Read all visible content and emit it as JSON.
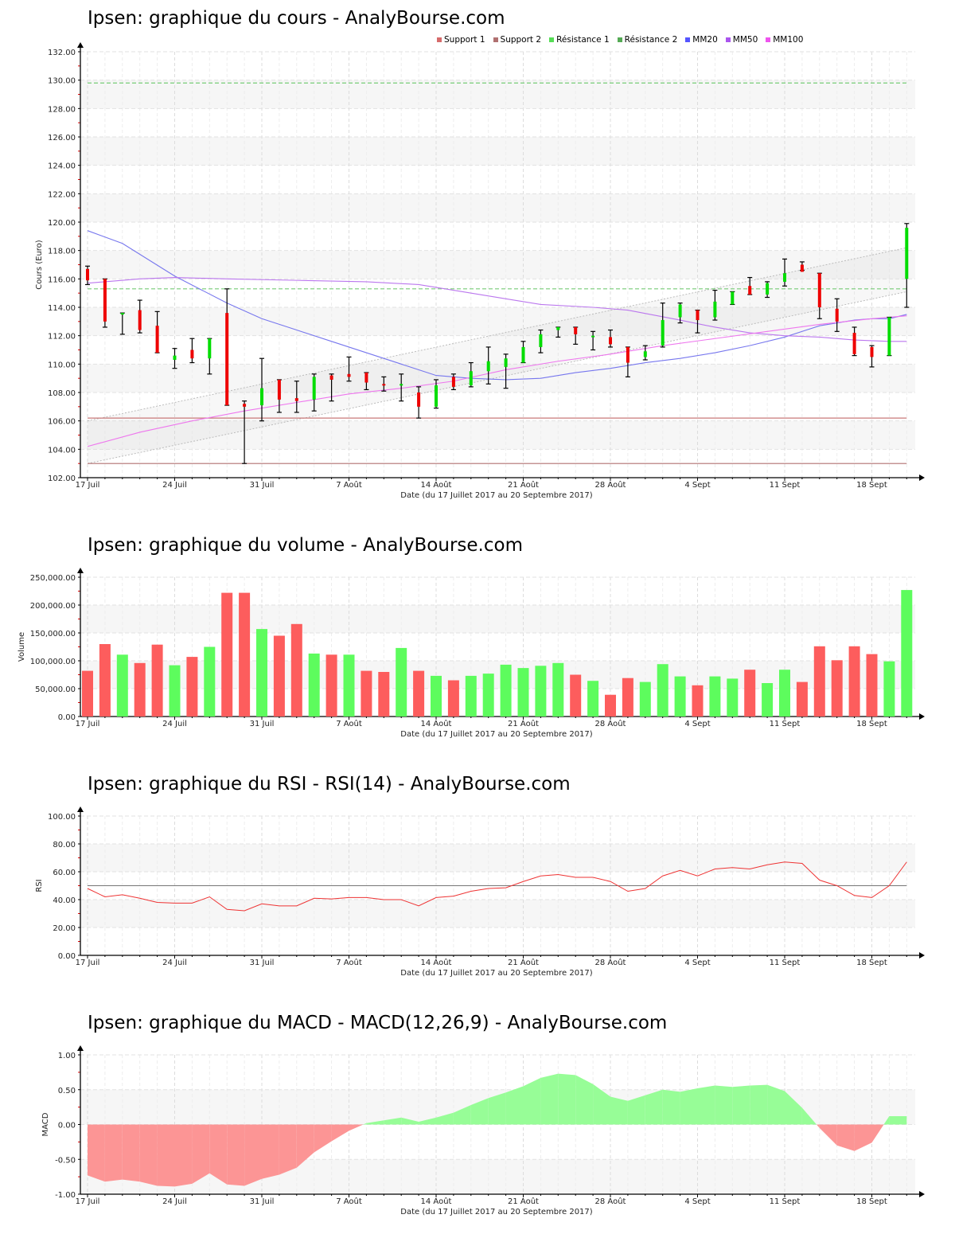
{
  "charts": {
    "price": {
      "title": "Ipsen: graphique du cours - AnalyBourse.com"
    },
    "volume": {
      "title": "Ipsen: graphique du volume - AnalyBourse.com"
    },
    "rsi": {
      "title": "Ipsen: graphique du RSI - RSI(14) - AnalyBourse.com"
    },
    "macd": {
      "title": "Ipsen: graphique du MACD - MACD(12,26,9) - AnalyBourse.com"
    }
  },
  "legend": [
    {
      "label": "Support 1",
      "color": "#d66b6b"
    },
    {
      "label": "Support 2",
      "color": "#b07070"
    },
    {
      "label": "Résistance 1",
      "color": "#55dd55"
    },
    {
      "label": "Résistance 2",
      "color": "#55aa55"
    },
    {
      "label": "MM20",
      "color": "#5555ff"
    },
    {
      "label": "MM50",
      "color": "#aa55ee"
    },
    {
      "label": "MM100",
      "color": "#ee55ee"
    }
  ],
  "chart_data": [
    {
      "type": "candlestick",
      "title": "Ipsen: graphique du cours - AnalyBourse.com",
      "xlabel": "Date (du 17 Juillet 2017 au 20 Septembre 2017)",
      "ylabel": "Cours (Euro)",
      "ylim": [
        102,
        132
      ],
      "yticks": [
        "102.00",
        "104.00",
        "106.00",
        "108.00",
        "110.00",
        "112.00",
        "114.00",
        "116.00",
        "118.00",
        "120.00",
        "122.00",
        "124.00",
        "126.00",
        "128.00",
        "130.00",
        "132.00"
      ],
      "xticks": [
        {
          "i": 0,
          "label": "17 Juil"
        },
        {
          "i": 5,
          "label": "24 Juil"
        },
        {
          "i": 10,
          "label": "31 Juil"
        },
        {
          "i": 15,
          "label": "7 Août"
        },
        {
          "i": 20,
          "label": "14 Août"
        },
        {
          "i": 25,
          "label": "21 Août"
        },
        {
          "i": 30,
          "label": "28 Août"
        },
        {
          "i": 35,
          "label": "4 Sept"
        },
        {
          "i": 40,
          "label": "11 Sept"
        },
        {
          "i": 45,
          "label": "18 Sept"
        }
      ],
      "candles": [
        {
          "o": 116.7,
          "h": 116.9,
          "l": 115.6,
          "c": 115.9
        },
        {
          "o": 116.0,
          "h": 116.0,
          "l": 112.6,
          "c": 113.0
        },
        {
          "o": 113.5,
          "h": 113.6,
          "l": 112.1,
          "c": 113.6
        },
        {
          "o": 113.8,
          "h": 114.5,
          "l": 112.2,
          "c": 112.4
        },
        {
          "o": 112.7,
          "h": 113.7,
          "l": 110.8,
          "c": 110.8
        },
        {
          "o": 110.3,
          "h": 111.1,
          "l": 109.7,
          "c": 110.6
        },
        {
          "o": 111.0,
          "h": 111.8,
          "l": 110.1,
          "c": 110.4
        },
        {
          "o": 110.4,
          "h": 111.8,
          "l": 109.3,
          "c": 111.8
        },
        {
          "o": 113.6,
          "h": 115.3,
          "l": 107.1,
          "c": 107.1
        },
        {
          "o": 107.2,
          "h": 107.4,
          "l": 103.0,
          "c": 107.0
        },
        {
          "o": 107.1,
          "h": 110.4,
          "l": 106.0,
          "c": 108.3
        },
        {
          "o": 108.9,
          "h": 108.9,
          "l": 106.6,
          "c": 107.5
        },
        {
          "o": 107.6,
          "h": 108.8,
          "l": 106.6,
          "c": 107.4
        },
        {
          "o": 107.5,
          "h": 109.3,
          "l": 106.7,
          "c": 109.1
        },
        {
          "o": 109.2,
          "h": 109.3,
          "l": 107.4,
          "c": 108.9
        },
        {
          "o": 109.3,
          "h": 110.5,
          "l": 108.8,
          "c": 109.1
        },
        {
          "o": 109.4,
          "h": 109.4,
          "l": 108.2,
          "c": 108.7
        },
        {
          "o": 108.6,
          "h": 109.1,
          "l": 108.1,
          "c": 108.5
        },
        {
          "o": 108.5,
          "h": 109.3,
          "l": 107.4,
          "c": 108.6
        },
        {
          "o": 108.0,
          "h": 108.4,
          "l": 106.2,
          "c": 107.0
        },
        {
          "o": 107.0,
          "h": 108.9,
          "l": 106.9,
          "c": 108.5
        },
        {
          "o": 109.1,
          "h": 109.3,
          "l": 108.2,
          "c": 108.4
        },
        {
          "o": 108.5,
          "h": 110.1,
          "l": 108.4,
          "c": 109.5
        },
        {
          "o": 109.5,
          "h": 111.2,
          "l": 108.6,
          "c": 110.2
        },
        {
          "o": 109.8,
          "h": 110.7,
          "l": 108.3,
          "c": 110.4
        },
        {
          "o": 110.1,
          "h": 111.6,
          "l": 110.1,
          "c": 111.2
        },
        {
          "o": 111.2,
          "h": 112.4,
          "l": 110.8,
          "c": 112.1
        },
        {
          "o": 112.4,
          "h": 112.6,
          "l": 111.9,
          "c": 112.6
        },
        {
          "o": 112.6,
          "h": 112.6,
          "l": 111.4,
          "c": 112.1
        },
        {
          "o": 112.0,
          "h": 112.3,
          "l": 111.0,
          "c": 112.0
        },
        {
          "o": 111.9,
          "h": 112.4,
          "l": 111.2,
          "c": 111.4
        },
        {
          "o": 111.2,
          "h": 111.2,
          "l": 109.1,
          "c": 110.1
        },
        {
          "o": 110.5,
          "h": 111.3,
          "l": 110.3,
          "c": 110.9
        },
        {
          "o": 111.3,
          "h": 114.3,
          "l": 111.2,
          "c": 113.1
        },
        {
          "o": 113.3,
          "h": 114.3,
          "l": 112.9,
          "c": 114.2
        },
        {
          "o": 113.8,
          "h": 113.8,
          "l": 112.2,
          "c": 113.1
        },
        {
          "o": 113.3,
          "h": 115.2,
          "l": 113.1,
          "c": 114.4
        },
        {
          "o": 114.2,
          "h": 115.1,
          "l": 114.2,
          "c": 115.1
        },
        {
          "o": 115.5,
          "h": 116.1,
          "l": 114.9,
          "c": 114.9
        },
        {
          "o": 114.9,
          "h": 115.8,
          "l": 114.7,
          "c": 115.7
        },
        {
          "o": 115.8,
          "h": 117.4,
          "l": 115.5,
          "c": 116.4
        },
        {
          "o": 117.0,
          "h": 117.2,
          "l": 116.6,
          "c": 116.5
        },
        {
          "o": 116.4,
          "h": 116.4,
          "l": 113.2,
          "c": 114.0
        },
        {
          "o": 113.9,
          "h": 114.6,
          "l": 112.3,
          "c": 113.0
        },
        {
          "o": 112.2,
          "h": 112.6,
          "l": 110.6,
          "c": 110.7
        },
        {
          "o": 111.2,
          "h": 111.3,
          "l": 109.8,
          "c": 110.5
        },
        {
          "o": 110.6,
          "h": 113.3,
          "l": 110.6,
          "c": 113.3
        },
        {
          "o": 116.0,
          "h": 119.9,
          "l": 114.0,
          "c": 119.6
        }
      ],
      "horizontal_lines": [
        {
          "name": "Support 1",
          "value": 106.2,
          "color": "#c87878",
          "style": "solid"
        },
        {
          "name": "Support 2",
          "value": 103.0,
          "color": "#b07070",
          "style": "solid"
        },
        {
          "name": "Résistance 1",
          "value": 115.3,
          "color": "#77cc77",
          "style": "dashed"
        },
        {
          "name": "Résistance 2",
          "value": 129.8,
          "color": "#77cc77",
          "style": "dashed"
        }
      ],
      "channel": {
        "upper": [
          [
            0,
            106.0
          ],
          [
            47,
            118.2
          ]
        ],
        "lower": [
          [
            0,
            103.0
          ],
          [
            47,
            115.1
          ]
        ]
      },
      "series": [
        {
          "name": "MM20",
          "color": "#7777ee",
          "points": [
            [
              0,
              119.4
            ],
            [
              2,
              118.5
            ],
            [
              5,
              116.2
            ],
            [
              8,
              114.3
            ],
            [
              10,
              113.2
            ],
            [
              12,
              112.4
            ],
            [
              14,
              111.6
            ],
            [
              16,
              110.8
            ],
            [
              18,
              110.0
            ],
            [
              20,
              109.2
            ],
            [
              22,
              109.0
            ],
            [
              24,
              108.9
            ],
            [
              26,
              109.0
            ],
            [
              28,
              109.4
            ],
            [
              30,
              109.7
            ],
            [
              32,
              110.1
            ],
            [
              34,
              110.4
            ],
            [
              36,
              110.8
            ],
            [
              38,
              111.3
            ],
            [
              40,
              111.9
            ],
            [
              42,
              112.7
            ],
            [
              44,
              113.1
            ],
            [
              45,
              113.2
            ],
            [
              46,
              113.2
            ],
            [
              47,
              113.5
            ]
          ]
        },
        {
          "name": "MM50",
          "color": "#bb77ee",
          "points": [
            [
              0,
              115.7
            ],
            [
              3,
              116.0
            ],
            [
              5,
              116.1
            ],
            [
              8,
              116.0
            ],
            [
              12,
              115.9
            ],
            [
              16,
              115.8
            ],
            [
              19,
              115.6
            ],
            [
              21,
              115.2
            ],
            [
              24,
              114.6
            ],
            [
              26,
              114.2
            ],
            [
              29,
              114.0
            ],
            [
              31,
              113.8
            ],
            [
              34,
              113.1
            ],
            [
              36,
              112.6
            ],
            [
              38,
              112.2
            ],
            [
              40,
              112.0
            ],
            [
              42,
              111.9
            ],
            [
              44,
              111.7
            ],
            [
              46,
              111.6
            ],
            [
              47,
              111.6
            ]
          ]
        },
        {
          "name": "MM100",
          "color": "#ee77ee",
          "points": [
            [
              0,
              104.2
            ],
            [
              3,
              105.2
            ],
            [
              6,
              106.0
            ],
            [
              9,
              106.7
            ],
            [
              12,
              107.3
            ],
            [
              15,
              107.9
            ],
            [
              18,
              108.3
            ],
            [
              21,
              108.8
            ],
            [
              24,
              109.6
            ],
            [
              27,
              110.2
            ],
            [
              30,
              110.7
            ],
            [
              33,
              111.3
            ],
            [
              36,
              111.8
            ],
            [
              39,
              112.3
            ],
            [
              42,
              112.8
            ],
            [
              45,
              113.2
            ],
            [
              47,
              113.4
            ]
          ]
        }
      ]
    },
    {
      "type": "bar",
      "title": "Ipsen: graphique du volume - AnalyBourse.com",
      "xlabel": "Date (du 17 Juillet 2017 au 20 Septembre 2017)",
      "ylabel": "Volume",
      "ylim": [
        0,
        250000
      ],
      "yticks": [
        "0.00",
        "50,000.00",
        "100,000.00",
        "150,000.00",
        "200,000.00",
        "250,000.00"
      ],
      "values": [
        82000,
        130000,
        111000,
        96000,
        129000,
        92000,
        107000,
        125000,
        222000,
        222000,
        157000,
        145000,
        166000,
        113000,
        111000,
        111000,
        82000,
        80000,
        123000,
        82000,
        73000,
        65000,
        73000,
        77000,
        93000,
        87000,
        91000,
        96000,
        75000,
        64000,
        39000,
        69000,
        62000,
        94000,
        72000,
        56000,
        72000,
        68000,
        84000,
        60000,
        84000,
        62000,
        126000,
        101000,
        126000,
        112000,
        99000,
        227000
      ],
      "colors": [
        "r",
        "r",
        "g",
        "r",
        "r",
        "g",
        "r",
        "g",
        "r",
        "r",
        "g",
        "r",
        "r",
        "g",
        "r",
        "g",
        "r",
        "r",
        "g",
        "r",
        "g",
        "r",
        "g",
        "g",
        "g",
        "g",
        "g",
        "g",
        "r",
        "g",
        "r",
        "r",
        "g",
        "g",
        "g",
        "r",
        "g",
        "g",
        "r",
        "g",
        "g",
        "r",
        "r",
        "r",
        "r",
        "r",
        "g",
        "g"
      ]
    },
    {
      "type": "line",
      "title": "Ipsen: graphique du RSI - RSI(14) - AnalyBourse.com",
      "xlabel": "Date (du 17 Juillet 2017 au 20 Septembre 2017)",
      "ylabel": "RSI",
      "ylim": [
        0,
        100
      ],
      "yticks": [
        "0.00",
        "20.00",
        "40.00",
        "60.00",
        "80.00",
        "100.00"
      ],
      "reference_line": 50,
      "values": [
        48,
        42,
        43.5,
        41,
        38,
        37.5,
        37.5,
        42,
        33,
        32,
        37,
        35.5,
        35.5,
        41,
        40.5,
        41.5,
        41.5,
        40,
        40,
        35.5,
        41.5,
        42.5,
        46,
        48,
        48.5,
        53,
        57,
        58,
        56,
        56,
        53,
        46,
        48,
        57,
        61,
        57,
        62,
        63,
        62,
        65,
        67,
        66,
        54,
        50,
        43,
        41.5,
        50,
        67
      ]
    },
    {
      "type": "area",
      "title": "Ipsen: graphique du MACD - MACD(12,26,9) - AnalyBourse.com",
      "xlabel": "Date (du 17 Juillet 2017 au 20 Septembre 2017)",
      "ylabel": "MACD",
      "ylim": [
        -1,
        1
      ],
      "yticks": [
        "-1.00",
        "-0.50",
        "0.00",
        "0.50",
        "1.00"
      ],
      "values": [
        -0.73,
        -0.82,
        -0.79,
        -0.82,
        -0.88,
        -0.89,
        -0.85,
        -0.7,
        -0.86,
        -0.88,
        -0.78,
        -0.72,
        -0.62,
        -0.4,
        -0.24,
        -0.09,
        0.02,
        0.06,
        0.1,
        0.04,
        0.1,
        0.17,
        0.28,
        0.38,
        0.46,
        0.55,
        0.67,
        0.73,
        0.71,
        0.58,
        0.4,
        0.34,
        0.42,
        0.5,
        0.47,
        0.52,
        0.56,
        0.54,
        0.56,
        0.57,
        0.48,
        0.24,
        -0.05,
        -0.3,
        -0.38,
        -0.26,
        0.12,
        0.12
      ]
    }
  ]
}
